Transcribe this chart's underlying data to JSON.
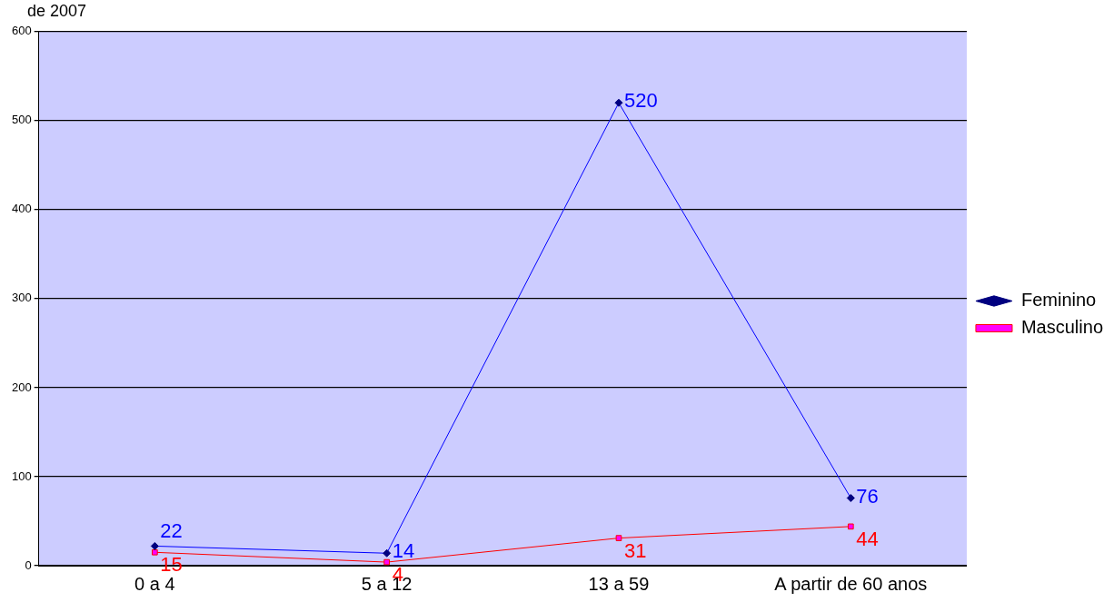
{
  "chart_data": {
    "type": "line",
    "title": "de 2007",
    "categories": [
      "0 a 4",
      "5 a 12",
      "13 a 59",
      "A partir de 60 anos"
    ],
    "series": [
      {
        "name": "Feminino",
        "color": "#0000ff",
        "values": [
          22,
          14,
          520,
          76
        ],
        "marker": "diamond"
      },
      {
        "name": "Masculino",
        "color": "#ff0000",
        "values": [
          15,
          4,
          31,
          44
        ],
        "marker": "square"
      }
    ],
    "ylim": [
      0,
      600
    ],
    "yticks": [
      0,
      100,
      200,
      300,
      400,
      500,
      600
    ],
    "grid": "y",
    "legend": "right",
    "data_labels": true,
    "line_style": "solid"
  }
}
